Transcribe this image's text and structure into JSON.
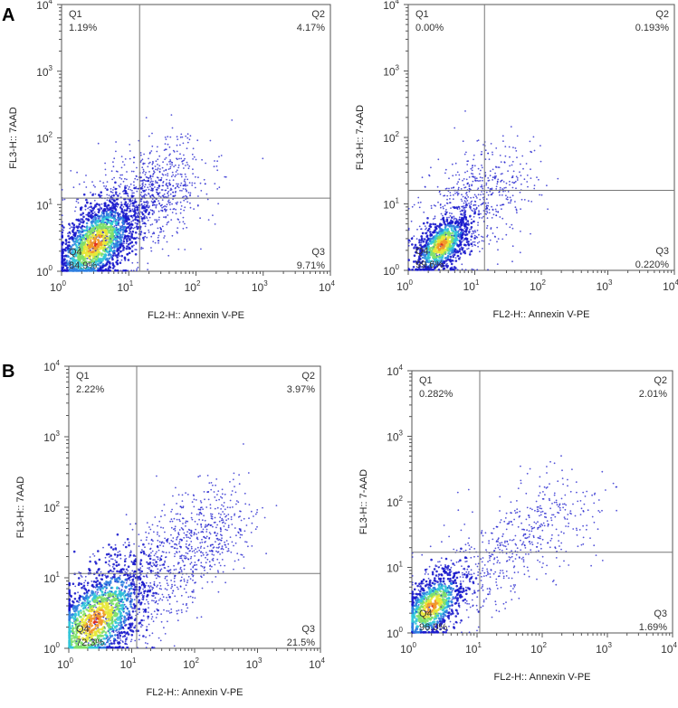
{
  "panels": [
    {
      "letter": "A",
      "letter_pos": "top-left"
    },
    {
      "letter": "B",
      "letter_pos": "top-left"
    }
  ],
  "chart_data": [
    {
      "type": "scatter",
      "subtype": "flow-cytometry-density",
      "panel": "A",
      "xlabel": "FL2-H:: Annexin V-PE",
      "ylabel": "FL3-H:: 7AAD",
      "x_scale": "log",
      "y_scale": "log",
      "xlim": [
        1,
        10000
      ],
      "ylim": [
        1,
        10000
      ],
      "x_ticks": [
        {
          "base": "10",
          "exp": "0"
        },
        {
          "base": "10",
          "exp": "1"
        },
        {
          "base": "10",
          "exp": "2"
        },
        {
          "base": "10",
          "exp": "3"
        },
        {
          "base": "10",
          "exp": "4"
        }
      ],
      "y_ticks": [
        {
          "base": "10",
          "exp": "0"
        },
        {
          "base": "10",
          "exp": "1"
        },
        {
          "base": "10",
          "exp": "2"
        },
        {
          "base": "10",
          "exp": "3"
        },
        {
          "base": "10",
          "exp": "4"
        }
      ],
      "gate": {
        "x": 14.5,
        "y": 12.5
      },
      "quadrants": [
        {
          "name": "Q1",
          "percent": "1.19%"
        },
        {
          "name": "Q2",
          "percent": "4.17%"
        },
        {
          "name": "Q3",
          "percent": "9.71%"
        },
        {
          "name": "Q4",
          "percent": "84.9%"
        }
      ],
      "population": {
        "center": [
          3.2,
          2.6
        ],
        "spread": [
          0.3,
          0.28
        ],
        "tail": [
          20,
          15
        ],
        "density": "high"
      }
    },
    {
      "type": "scatter",
      "subtype": "flow-cytometry-density",
      "panel": "A",
      "xlabel": "FL2-H:: Annexin V-PE",
      "ylabel": "FL3-H:: 7-AAD",
      "x_scale": "log",
      "y_scale": "log",
      "xlim": [
        1,
        10000
      ],
      "ylim": [
        1,
        10000
      ],
      "x_ticks": [
        {
          "base": "10",
          "exp": "0"
        },
        {
          "base": "10",
          "exp": "1"
        },
        {
          "base": "10",
          "exp": "2"
        },
        {
          "base": "10",
          "exp": "3"
        },
        {
          "base": "10",
          "exp": "4"
        }
      ],
      "y_ticks": [
        {
          "base": "10",
          "exp": "0"
        },
        {
          "base": "10",
          "exp": "1"
        },
        {
          "base": "10",
          "exp": "2"
        },
        {
          "base": "10",
          "exp": "3"
        },
        {
          "base": "10",
          "exp": "4"
        }
      ],
      "gate": {
        "x": 14,
        "y": 16
      },
      "quadrants": [
        {
          "name": "Q1",
          "percent": "0.00%"
        },
        {
          "name": "Q2",
          "percent": "0.193%"
        },
        {
          "name": "Q3",
          "percent": "0.220%"
        },
        {
          "name": "Q4",
          "percent": "99.6%"
        }
      ],
      "population": {
        "center": [
          3.2,
          2.4
        ],
        "spread": [
          0.2,
          0.18
        ],
        "tail": [
          12,
          14
        ],
        "density": "medium"
      }
    },
    {
      "type": "scatter",
      "subtype": "flow-cytometry-density",
      "panel": "B",
      "xlabel": "FL2-H:: Annexin V-PE",
      "ylabel": "FL3-H:: 7AAD",
      "x_scale": "log",
      "y_scale": "log",
      "xlim": [
        1,
        10000
      ],
      "ylim": [
        1,
        10000
      ],
      "x_ticks": [
        {
          "base": "10",
          "exp": "0"
        },
        {
          "base": "10",
          "exp": "1"
        },
        {
          "base": "10",
          "exp": "2"
        },
        {
          "base": "10",
          "exp": "3"
        },
        {
          "base": "10",
          "exp": "4"
        }
      ],
      "y_ticks": [
        {
          "base": "10",
          "exp": "0"
        },
        {
          "base": "10",
          "exp": "1"
        },
        {
          "base": "10",
          "exp": "2"
        },
        {
          "base": "10",
          "exp": "3"
        },
        {
          "base": "10",
          "exp": "4"
        }
      ],
      "gate": {
        "x": 12,
        "y": 11.5
      },
      "quadrants": [
        {
          "name": "Q1",
          "percent": "2.22%"
        },
        {
          "name": "Q2",
          "percent": "3.97%"
        },
        {
          "name": "Q3",
          "percent": "21.5%"
        },
        {
          "name": "Q4",
          "percent": "72.3%"
        }
      ],
      "population": {
        "center": [
          2.6,
          2.4
        ],
        "spread": [
          0.42,
          0.34
        ],
        "tail": [
          60,
          25
        ],
        "density": "high"
      }
    },
    {
      "type": "scatter",
      "subtype": "flow-cytometry-density",
      "panel": "B",
      "xlabel": "FL2-H:: Annexin V-PE",
      "ylabel": "FL3-H:: 7-AAD",
      "x_scale": "log",
      "y_scale": "log",
      "xlim": [
        1,
        10000
      ],
      "ylim": [
        1,
        10000
      ],
      "x_ticks": [
        {
          "base": "10",
          "exp": "0"
        },
        {
          "base": "10",
          "exp": "1"
        },
        {
          "base": "10",
          "exp": "2"
        },
        {
          "base": "10",
          "exp": "3"
        },
        {
          "base": "10",
          "exp": "4"
        }
      ],
      "y_ticks": [
        {
          "base": "10",
          "exp": "0"
        },
        {
          "base": "10",
          "exp": "1"
        },
        {
          "base": "10",
          "exp": "2"
        },
        {
          "base": "10",
          "exp": "3"
        },
        {
          "base": "10",
          "exp": "4"
        }
      ],
      "gate": {
        "x": 11,
        "y": 17
      },
      "quadrants": [
        {
          "name": "Q1",
          "percent": "0.282%"
        },
        {
          "name": "Q2",
          "percent": "2.01%"
        },
        {
          "name": "Q3",
          "percent": "1.69%"
        },
        {
          "name": "Q4",
          "percent": "96.0%"
        }
      ],
      "population": {
        "center": [
          2.0,
          2.5
        ],
        "spread": [
          0.25,
          0.22
        ],
        "tail": [
          50,
          30
        ],
        "density": "medium"
      }
    }
  ],
  "colors": {
    "sparse": "#1a1acc",
    "density_ramp": [
      "#1a1acc",
      "#2f7fe0",
      "#33c7d8",
      "#7fe06a",
      "#e8e83a",
      "#f29a2a",
      "#e02a1a"
    ],
    "frame": "#555555",
    "gate": "#777777"
  }
}
